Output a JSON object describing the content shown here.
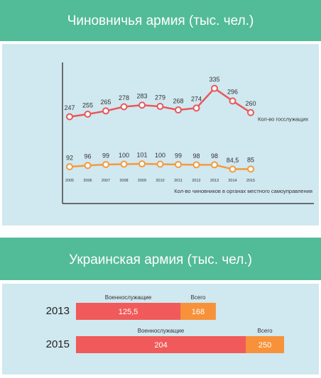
{
  "chart_data": [
    {
      "type": "line",
      "title": "Чиновничья армия (тыс. чел.)",
      "categories": [
        "2005",
        "2006",
        "2007",
        "2008",
        "2009",
        "2010",
        "2011",
        "2012",
        "2013",
        "2014",
        "2015"
      ],
      "ylim": [
        0,
        400
      ],
      "series": [
        {
          "name": "Кол-во госслужащих",
          "color": "#e8575a",
          "values": [
            247,
            255,
            265,
            278,
            283,
            279,
            268,
            274,
            335,
            296,
            260
          ]
        },
        {
          "name": "Кол-во чиновников в органах местного самоуправления",
          "color": "#f49a3c",
          "values": [
            92,
            96,
            99,
            100,
            101,
            100,
            99,
            98,
            98,
            84.5,
            85
          ],
          "value_labels": [
            "92",
            "96",
            "99",
            "100",
            "101",
            "100",
            "99",
            "98",
            "98",
            "84,5",
            "85"
          ]
        }
      ]
    },
    {
      "type": "hbar",
      "title": "Украинская армия (тыс. чел.)",
      "categories": [
        "2013",
        "2015"
      ],
      "xlim": [
        0,
        250
      ],
      "series": [
        {
          "name": "Всего",
          "color": "#f7923a",
          "values": [
            168,
            250
          ]
        },
        {
          "name": "Военнослужащие",
          "color": "#f15a5a",
          "values": [
            125.5,
            204
          ],
          "value_labels": [
            "125,5",
            "204"
          ]
        }
      ]
    }
  ]
}
